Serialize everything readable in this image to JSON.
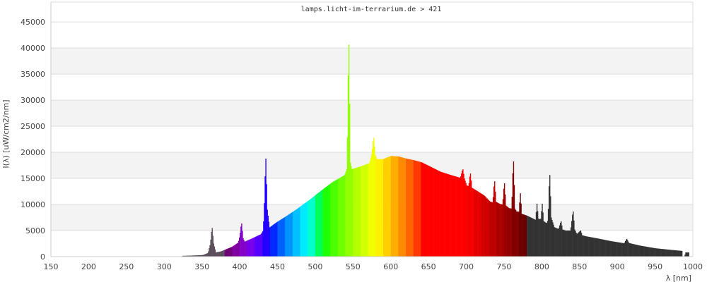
{
  "chart_data": {
    "type": "bar",
    "title": "lamps.licht-im-terrarium.de > 421",
    "xlabel": "λ [nm]",
    "ylabel": "I(λ) [uW/cm2/nm]",
    "xlim": [
      150,
      1000
    ],
    "ylim": [
      0,
      48800
    ],
    "xticks": [
      150,
      200,
      250,
      300,
      350,
      400,
      450,
      500,
      550,
      600,
      650,
      700,
      750,
      800,
      850,
      900,
      950,
      1000
    ],
    "yticks": [
      0,
      5000,
      10000,
      15000,
      20000,
      25000,
      30000,
      35000,
      40000,
      45000
    ],
    "grid": "horizontal, alternating bands",
    "colors": {
      "uv": "#5a4f5a",
      "ir": "#333333",
      "grid": "#dddddd",
      "band": "#f3f3f3"
    },
    "points": [
      [
        323,
        0
      ],
      [
        324,
        150
      ],
      [
        335,
        200
      ],
      [
        351,
        300
      ],
      [
        358,
        700
      ],
      [
        361,
        2500
      ],
      [
        363,
        5500
      ],
      [
        365,
        2500
      ],
      [
        368,
        800
      ],
      [
        375,
        1000
      ],
      [
        381,
        1350
      ],
      [
        390,
        1900
      ],
      [
        398,
        2700
      ],
      [
        400,
        4000
      ],
      [
        402,
        6350
      ],
      [
        404,
        3500
      ],
      [
        406,
        2850
      ],
      [
        415,
        3400
      ],
      [
        428,
        4300
      ],
      [
        431,
        5000
      ],
      [
        433,
        12000
      ],
      [
        434,
        18800
      ],
      [
        436,
        9000
      ],
      [
        439,
        5550
      ],
      [
        450,
        6700
      ],
      [
        460,
        7600
      ],
      [
        475,
        9050
      ],
      [
        493,
        10950
      ],
      [
        510,
        12900
      ],
      [
        523,
        14300
      ],
      [
        539,
        15650
      ],
      [
        542,
        17000
      ],
      [
        544,
        40650
      ],
      [
        546,
        18000
      ],
      [
        548,
        16750
      ],
      [
        560,
        17300
      ],
      [
        572,
        17950
      ],
      [
        575,
        20000
      ],
      [
        577,
        22800
      ],
      [
        579,
        19500
      ],
      [
        581,
        18700
      ],
      [
        590,
        18700
      ],
      [
        600,
        19300
      ],
      [
        610,
        19200
      ],
      [
        620,
        18800
      ],
      [
        630,
        18500
      ],
      [
        640,
        18100
      ],
      [
        650,
        17400
      ],
      [
        665,
        16300
      ],
      [
        680,
        15600
      ],
      [
        692,
        15100
      ],
      [
        695,
        16750
      ],
      [
        697,
        15000
      ],
      [
        700,
        13650
      ],
      [
        703,
        13500
      ],
      [
        705,
        15950
      ],
      [
        707,
        13200
      ],
      [
        711,
        12850
      ],
      [
        723,
        11750
      ],
      [
        731,
        10550
      ],
      [
        735,
        10400
      ],
      [
        737,
        14450
      ],
      [
        739,
        10500
      ],
      [
        744,
        10100
      ],
      [
        748,
        10000
      ],
      [
        750,
        14050
      ],
      [
        752,
        9800
      ],
      [
        756,
        9300
      ],
      [
        760,
        9200
      ],
      [
        762,
        18250
      ],
      [
        764,
        9200
      ],
      [
        766,
        8650
      ],
      [
        770,
        8600
      ],
      [
        771,
        12150
      ],
      [
        773,
        8200
      ],
      [
        780,
        7850
      ],
      [
        792,
        7000
      ],
      [
        793,
        10150
      ],
      [
        795,
        7300
      ],
      [
        797,
        7150
      ],
      [
        799,
        7300
      ],
      [
        800,
        10150
      ],
      [
        802,
        6800
      ],
      [
        806,
        6350
      ],
      [
        808,
        7000
      ],
      [
        810,
        15650
      ],
      [
        812,
        7500
      ],
      [
        816,
        5650
      ],
      [
        822,
        5250
      ],
      [
        825,
        6750
      ],
      [
        827,
        5200
      ],
      [
        831,
        5000
      ],
      [
        838,
        5000
      ],
      [
        841,
        8650
      ],
      [
        843,
        5200
      ],
      [
        846,
        4300
      ],
      [
        851,
        5000
      ],
      [
        853,
        4100
      ],
      [
        858,
        3900
      ],
      [
        873,
        3500
      ],
      [
        890,
        3000
      ],
      [
        909,
        2550
      ],
      [
        912,
        3400
      ],
      [
        915,
        2600
      ],
      [
        930,
        2100
      ],
      [
        950,
        1600
      ],
      [
        970,
        1300
      ],
      [
        985,
        1100
      ],
      [
        986,
        0
      ],
      [
        989,
        0
      ],
      [
        990,
        800
      ],
      [
        994,
        800
      ],
      [
        995,
        0
      ]
    ]
  }
}
